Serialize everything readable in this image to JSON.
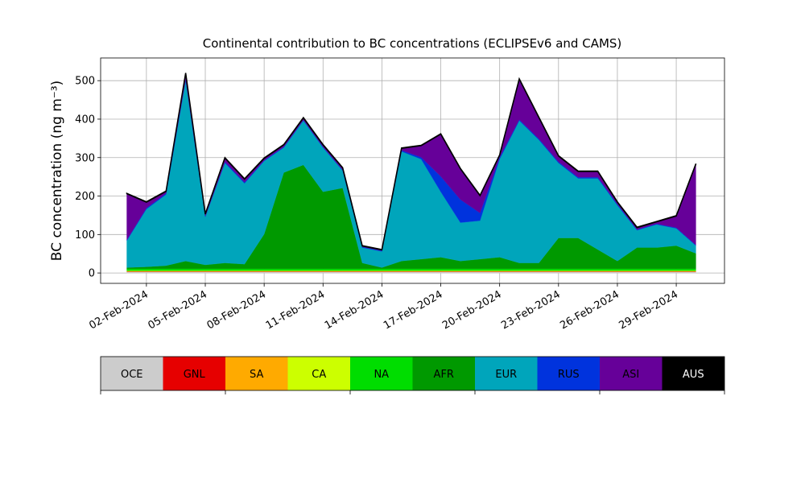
{
  "chart_data": {
    "type": "area",
    "title": "Continental contribution to BC concentrations (ECLIPSEv6 and CAMS)",
    "y_label": "BC concentration (ng m⁻³)",
    "stacked": true,
    "grid": true,
    "x": [
      "2024-02-01",
      "2024-02-02",
      "2024-02-03",
      "2024-02-04",
      "2024-02-05",
      "2024-02-06",
      "2024-02-07",
      "2024-02-08",
      "2024-02-09",
      "2024-02-10",
      "2024-02-11",
      "2024-02-12",
      "2024-02-13",
      "2024-02-14",
      "2024-02-15",
      "2024-02-16",
      "2024-02-17",
      "2024-02-18",
      "2024-02-19",
      "2024-02-20",
      "2024-02-21",
      "2024-02-22",
      "2024-02-23",
      "2024-02-24",
      "2024-02-25",
      "2024-02-26",
      "2024-02-27",
      "2024-02-28",
      "2024-02-29",
      "2024-03-01"
    ],
    "xlim": [
      "2024-01-30T16:00",
      "2024-03-02T11:00"
    ],
    "xticks": [
      {
        "value": "2024-02-02",
        "label": "02-Feb-2024"
      },
      {
        "value": "2024-02-05",
        "label": "05-Feb-2024"
      },
      {
        "value": "2024-02-08",
        "label": "08-Feb-2024"
      },
      {
        "value": "2024-02-11",
        "label": "11-Feb-2024"
      },
      {
        "value": "2024-02-14",
        "label": "14-Feb-2024"
      },
      {
        "value": "2024-02-17",
        "label": "17-Feb-2024"
      },
      {
        "value": "2024-02-20",
        "label": "20-Feb-2024"
      },
      {
        "value": "2024-02-23",
        "label": "23-Feb-2024"
      },
      {
        "value": "2024-02-26",
        "label": "26-Feb-2024"
      },
      {
        "value": "2024-02-29",
        "label": "29-Feb-2024"
      }
    ],
    "ylim": [
      -27,
      559
    ],
    "yticks": [
      0,
      100,
      200,
      300,
      400,
      500
    ],
    "series": [
      {
        "name": "OCE",
        "color": "#cccccc",
        "values": [
          3,
          3,
          3,
          3,
          3,
          3,
          3,
          3,
          3,
          3,
          3,
          3,
          3,
          3,
          3,
          3,
          3,
          3,
          3,
          3,
          3,
          3,
          3,
          3,
          3,
          3,
          3,
          3,
          3,
          3
        ]
      },
      {
        "name": "GNL",
        "color": "#e60000",
        "values": [
          1,
          1,
          1,
          1,
          1,
          1,
          1,
          1,
          1,
          1,
          1,
          1,
          1,
          1,
          1,
          1,
          1,
          1,
          1,
          1,
          1,
          1,
          1,
          1,
          1,
          1,
          1,
          1,
          1,
          1
        ]
      },
      {
        "name": "SA",
        "color": "#ffaa00",
        "values": [
          1,
          1,
          1,
          1,
          1,
          1,
          1,
          1,
          1,
          1,
          1,
          1,
          1,
          1,
          1,
          1,
          1,
          1,
          1,
          1,
          1,
          1,
          1,
          1,
          1,
          1,
          1,
          1,
          1,
          1
        ]
      },
      {
        "name": "CA",
        "color": "#ccff00",
        "values": [
          1,
          1,
          1,
          1,
          1,
          1,
          1,
          1,
          1,
          1,
          1,
          1,
          1,
          1,
          1,
          1,
          1,
          1,
          1,
          1,
          1,
          1,
          1,
          1,
          1,
          1,
          1,
          1,
          1,
          1
        ]
      },
      {
        "name": "NA",
        "color": "#00dd00",
        "values": [
          5,
          5,
          5,
          5,
          5,
          5,
          5,
          5,
          5,
          5,
          5,
          5,
          5,
          5,
          5,
          5,
          5,
          5,
          5,
          5,
          5,
          5,
          5,
          5,
          5,
          5,
          5,
          5,
          5,
          5
        ]
      },
      {
        "name": "AFR",
        "color": "#009900",
        "values": [
          3,
          5,
          8,
          20,
          10,
          15,
          12,
          90,
          250,
          270,
          200,
          210,
          15,
          3,
          20,
          25,
          30,
          20,
          25,
          30,
          15,
          15,
          80,
          80,
          50,
          20,
          55,
          55,
          60,
          40
        ]
      },
      {
        "name": "EUR",
        "color": "#00a5bb",
        "values": [
          70,
          150,
          185,
          470,
          125,
          260,
          210,
          190,
          65,
          115,
          115,
          45,
          40,
          42,
          285,
          260,
          170,
          100,
          100,
          255,
          370,
          320,
          195,
          155,
          185,
          145,
          45,
          60,
          45,
          20
        ]
      },
      {
        "name": "RUS",
        "color": "#0033dd",
        "values": [
          2,
          3,
          3,
          3,
          2,
          3,
          3,
          2,
          2,
          2,
          2,
          2,
          2,
          2,
          3,
          5,
          40,
          60,
          20,
          5,
          3,
          3,
          3,
          3,
          3,
          3,
          2,
          2,
          2,
          2
        ]
      },
      {
        "name": "ASI",
        "color": "#660099",
        "values": [
          120,
          15,
          5,
          15,
          5,
          10,
          8,
          5,
          5,
          5,
          5,
          5,
          2,
          2,
          5,
          30,
          110,
          80,
          45,
          5,
          105,
          55,
          15,
          15,
          15,
          5,
          5,
          5,
          30,
          210
        ]
      },
      {
        "name": "AUS",
        "color": "#000000",
        "values": [
          1,
          1,
          1,
          1,
          1,
          1,
          1,
          1,
          1,
          1,
          1,
          1,
          1,
          1,
          1,
          1,
          1,
          1,
          1,
          1,
          1,
          1,
          1,
          1,
          1,
          1,
          1,
          1,
          1,
          1
        ]
      }
    ]
  }
}
